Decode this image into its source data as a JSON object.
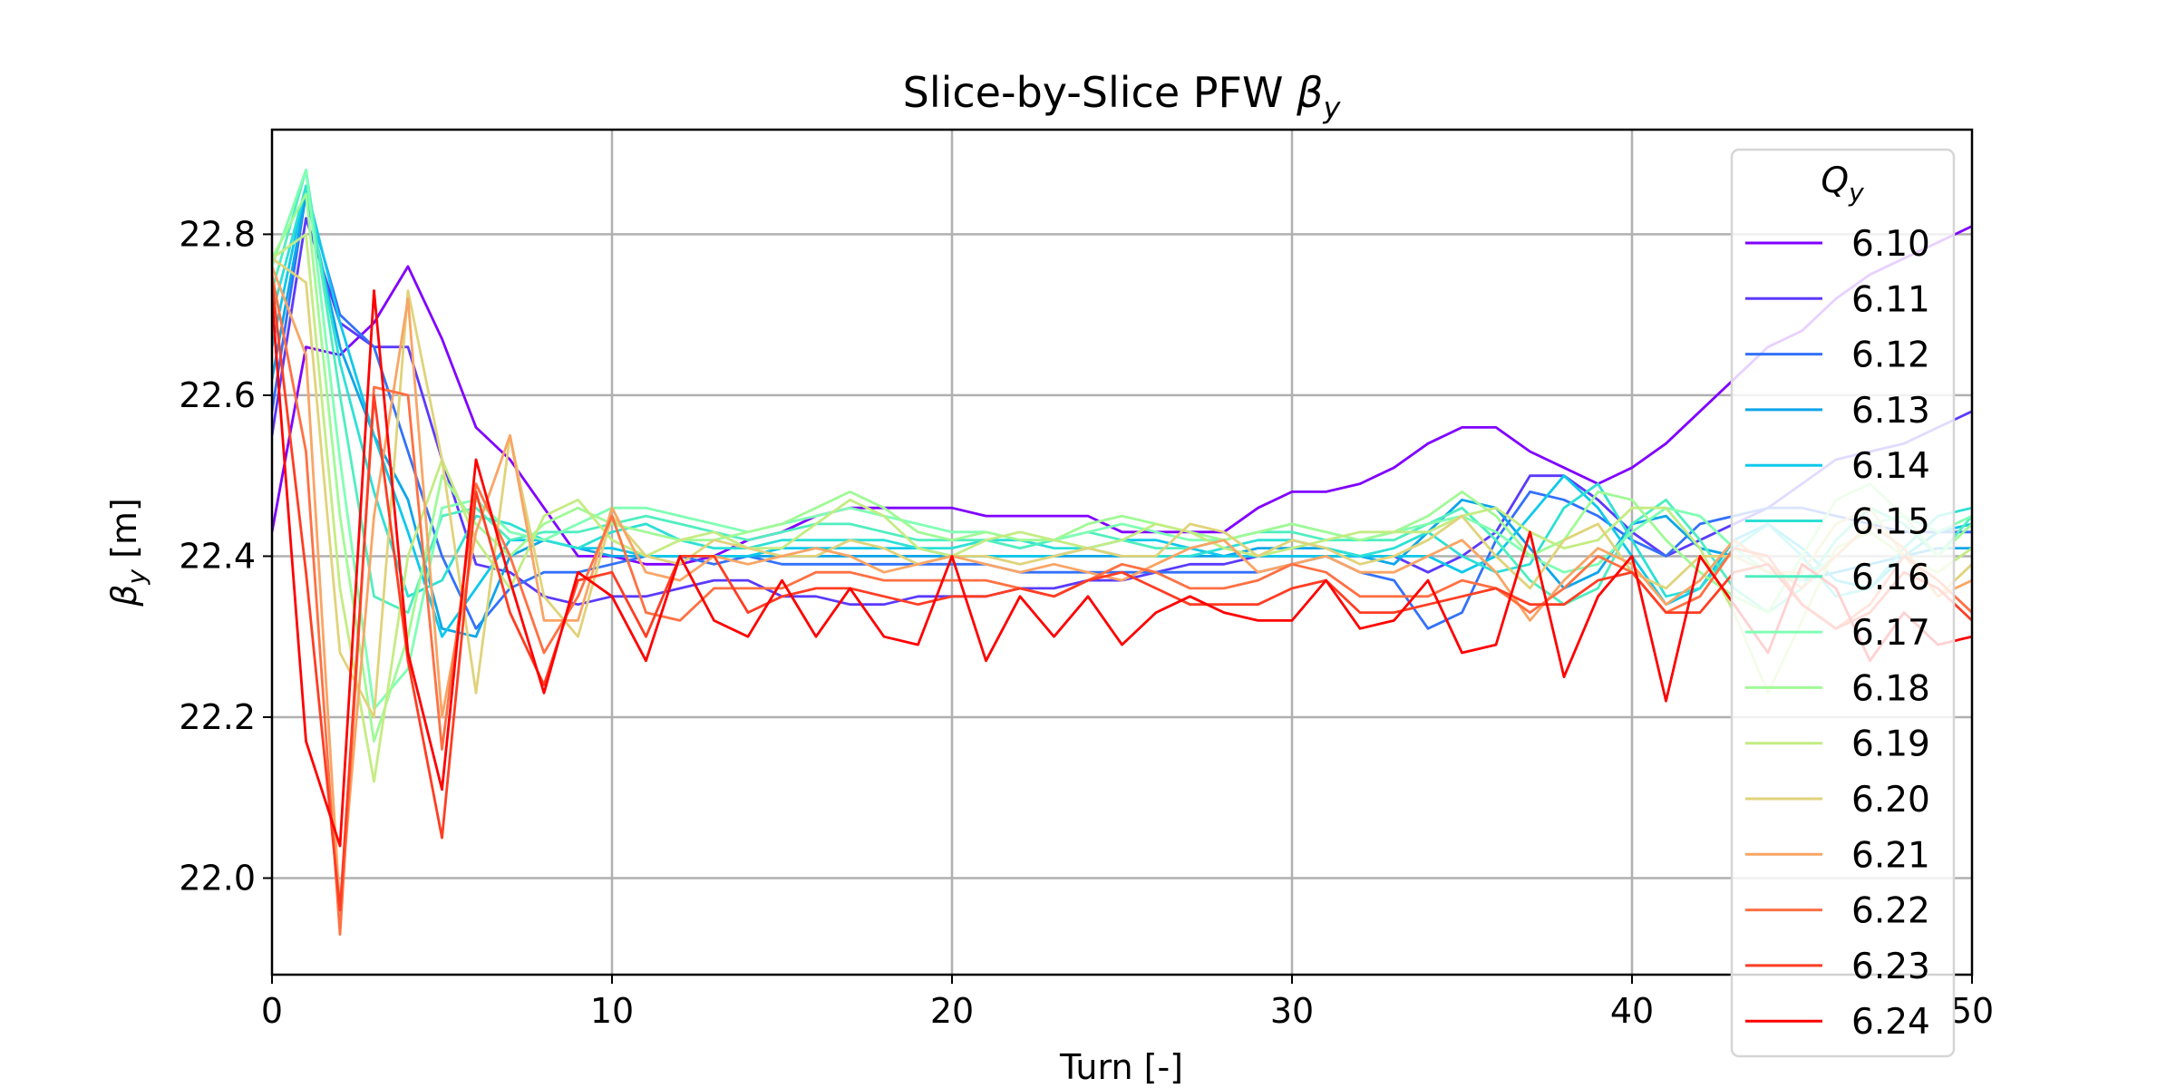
{
  "chart_data": {
    "type": "line",
    "title": "Slice-by-Slice PFW",
    "title_symbol": "β",
    "title_symbol_sub": "y",
    "xlabel": "Turn [-]",
    "ylabel": "β",
    "ylabel_sub": "y",
    "ylabel_unit": " [m]",
    "xlim": [
      0,
      50
    ],
    "ylim": [
      21.88,
      22.93
    ],
    "xticks": [
      "0",
      "10",
      "20",
      "30",
      "40",
      "50"
    ],
    "yticks": [
      "22.0",
      "22.2",
      "22.4",
      "22.6",
      "22.8"
    ],
    "grid": true,
    "legend_title": "Q",
    "legend_title_sub": "y",
    "legend_position": "right",
    "series": [
      {
        "name": "6.10",
        "color": "#8000ff",
        "values": [
          22.43,
          22.66,
          22.65,
          22.69,
          22.76,
          22.67,
          22.56,
          22.52,
          22.46,
          22.4,
          22.4,
          22.39,
          22.39,
          22.4,
          22.42,
          22.43,
          22.45,
          22.46,
          22.46,
          22.46,
          22.46,
          22.45,
          22.45,
          22.45,
          22.45,
          22.43,
          22.43,
          22.43,
          22.43,
          22.46,
          22.48,
          22.48,
          22.49,
          22.51,
          22.54,
          22.56,
          22.56,
          22.53,
          22.51,
          22.49,
          22.51,
          22.54,
          22.58,
          22.62,
          22.66,
          22.68,
          22.72,
          22.75,
          22.77,
          22.79,
          22.81
        ]
      },
      {
        "name": "6.11",
        "color": "#5b3afc",
        "values": [
          22.55,
          22.82,
          22.69,
          22.66,
          22.66,
          22.52,
          22.39,
          22.38,
          22.35,
          22.34,
          22.35,
          22.35,
          22.36,
          22.37,
          22.37,
          22.35,
          22.35,
          22.34,
          22.34,
          22.35,
          22.35,
          22.35,
          22.36,
          22.36,
          22.37,
          22.37,
          22.38,
          22.39,
          22.39,
          22.4,
          22.4,
          22.4,
          22.4,
          22.4,
          22.38,
          22.4,
          22.43,
          22.5,
          22.5,
          22.47,
          22.43,
          22.4,
          22.42,
          22.44,
          22.46,
          22.49,
          22.52,
          22.53,
          22.54,
          22.56,
          22.58
        ]
      },
      {
        "name": "6.12",
        "color": "#3371fa",
        "values": [
          22.58,
          22.85,
          22.7,
          22.66,
          22.53,
          22.4,
          22.31,
          22.36,
          22.38,
          22.38,
          22.39,
          22.4,
          22.4,
          22.39,
          22.4,
          22.39,
          22.39,
          22.39,
          22.39,
          22.39,
          22.39,
          22.39,
          22.38,
          22.38,
          22.38,
          22.38,
          22.38,
          22.38,
          22.38,
          22.38,
          22.39,
          22.4,
          22.38,
          22.37,
          22.31,
          22.33,
          22.42,
          22.48,
          22.47,
          22.45,
          22.42,
          22.4,
          22.44,
          22.45,
          22.46,
          22.46,
          22.45,
          22.44,
          22.43,
          22.43,
          22.43
        ]
      },
      {
        "name": "6.13",
        "color": "#0ea5e9",
        "values": [
          22.62,
          22.85,
          22.66,
          22.55,
          22.47,
          22.31,
          22.3,
          22.4,
          22.42,
          22.41,
          22.4,
          22.4,
          22.4,
          22.4,
          22.4,
          22.4,
          22.4,
          22.4,
          22.4,
          22.4,
          22.4,
          22.4,
          22.4,
          22.4,
          22.4,
          22.4,
          22.4,
          22.4,
          22.4,
          22.41,
          22.41,
          22.41,
          22.4,
          22.39,
          22.43,
          22.47,
          22.46,
          22.41,
          22.36,
          22.38,
          22.44,
          22.45,
          22.41,
          22.4,
          22.38,
          22.37,
          22.38,
          22.39,
          22.4,
          22.41,
          22.41
        ]
      },
      {
        "name": "6.14",
        "color": "#0fc8eb",
        "values": [
          22.66,
          22.86,
          22.69,
          22.55,
          22.43,
          22.3,
          22.36,
          22.42,
          22.42,
          22.41,
          22.41,
          22.4,
          22.4,
          22.4,
          22.4,
          22.41,
          22.41,
          22.41,
          22.41,
          22.41,
          22.4,
          22.4,
          22.4,
          22.4,
          22.41,
          22.42,
          22.42,
          22.41,
          22.4,
          22.4,
          22.4,
          22.4,
          22.4,
          22.4,
          22.4,
          22.38,
          22.4,
          22.45,
          22.5,
          22.46,
          22.4,
          22.34,
          22.36,
          22.42,
          22.44,
          22.41,
          22.37,
          22.36,
          22.4,
          22.43,
          22.44
        ]
      },
      {
        "name": "6.15",
        "color": "#2de0d5",
        "values": [
          22.7,
          22.86,
          22.64,
          22.48,
          22.35,
          22.37,
          22.45,
          22.44,
          22.42,
          22.41,
          22.43,
          22.44,
          22.42,
          22.41,
          22.41,
          22.42,
          22.42,
          22.42,
          22.42,
          22.41,
          22.41,
          22.42,
          22.42,
          22.41,
          22.41,
          22.4,
          22.4,
          22.4,
          22.41,
          22.42,
          22.42,
          22.41,
          22.4,
          22.41,
          22.43,
          22.4,
          22.38,
          22.39,
          22.46,
          22.49,
          22.42,
          22.35,
          22.36,
          22.41,
          22.44,
          22.4,
          22.35,
          22.36,
          22.41,
          22.45,
          22.46
        ]
      },
      {
        "name": "6.16",
        "color": "#50eebf",
        "values": [
          22.73,
          22.88,
          22.6,
          22.35,
          22.33,
          22.45,
          22.46,
          22.42,
          22.43,
          22.43,
          22.44,
          22.45,
          22.44,
          22.43,
          22.42,
          22.43,
          22.44,
          22.44,
          22.43,
          22.42,
          22.42,
          22.42,
          22.41,
          22.42,
          22.43,
          22.42,
          22.41,
          22.41,
          22.42,
          22.43,
          22.43,
          22.42,
          22.42,
          22.42,
          22.44,
          22.46,
          22.42,
          22.37,
          22.34,
          22.36,
          22.44,
          22.47,
          22.42,
          22.36,
          22.33,
          22.36,
          22.42,
          22.46,
          22.44,
          22.4,
          22.45
        ]
      },
      {
        "name": "6.17",
        "color": "#80ffb4",
        "values": [
          22.76,
          22.88,
          22.52,
          22.21,
          22.26,
          22.46,
          22.47,
          22.43,
          22.42,
          22.44,
          22.46,
          22.46,
          22.45,
          22.44,
          22.43,
          22.44,
          22.45,
          22.46,
          22.45,
          22.44,
          22.43,
          22.43,
          22.42,
          22.42,
          22.43,
          22.44,
          22.43,
          22.42,
          22.42,
          22.43,
          22.44,
          22.43,
          22.42,
          22.43,
          22.44,
          22.45,
          22.43,
          22.4,
          22.38,
          22.39,
          22.43,
          22.46,
          22.45,
          22.41,
          22.38,
          22.37,
          22.4,
          22.44,
          22.45,
          22.43,
          22.45
        ]
      },
      {
        "name": "6.18",
        "color": "#a0fa96",
        "values": [
          22.77,
          22.85,
          22.45,
          22.17,
          22.3,
          22.5,
          22.44,
          22.4,
          22.44,
          22.46,
          22.44,
          22.43,
          22.42,
          22.42,
          22.43,
          22.44,
          22.46,
          22.48,
          22.46,
          22.43,
          22.42,
          22.43,
          22.42,
          22.42,
          22.44,
          22.45,
          22.44,
          22.43,
          22.42,
          22.43,
          22.44,
          22.43,
          22.42,
          22.43,
          22.45,
          22.48,
          22.45,
          22.4,
          22.42,
          22.48,
          22.47,
          22.42,
          22.38,
          22.35,
          22.33,
          22.4,
          22.47,
          22.49,
          22.45,
          22.4,
          22.44
        ]
      },
      {
        "name": "6.19",
        "color": "#c4ec83",
        "values": [
          22.77,
          22.8,
          22.36,
          22.12,
          22.4,
          22.52,
          22.42,
          22.36,
          22.45,
          22.47,
          22.42,
          22.4,
          22.42,
          22.43,
          22.41,
          22.41,
          22.44,
          22.47,
          22.45,
          22.41,
          22.4,
          22.42,
          22.43,
          22.42,
          22.41,
          22.42,
          22.44,
          22.43,
          22.41,
          22.4,
          22.41,
          22.42,
          22.43,
          22.43,
          22.43,
          22.45,
          22.46,
          22.43,
          22.41,
          22.42,
          22.46,
          22.46,
          22.41,
          22.33,
          22.23,
          22.32,
          22.41,
          22.43,
          22.4,
          22.38,
          22.41
        ]
      },
      {
        "name": "6.20",
        "color": "#e0d37a",
        "values": [
          22.77,
          22.74,
          22.28,
          22.2,
          22.73,
          22.52,
          22.23,
          22.55,
          22.35,
          22.3,
          22.45,
          22.4,
          22.39,
          22.42,
          22.41,
          22.4,
          22.4,
          22.42,
          22.41,
          22.39,
          22.4,
          22.4,
          22.39,
          22.4,
          22.41,
          22.4,
          22.4,
          22.44,
          22.43,
          22.4,
          22.42,
          22.41,
          22.39,
          22.4,
          22.42,
          22.45,
          22.4,
          22.36,
          22.42,
          22.44,
          22.38,
          22.36,
          22.4,
          22.4,
          22.38,
          22.38,
          22.44,
          22.46,
          22.4,
          22.35,
          22.39
        ]
      },
      {
        "name": "6.21",
        "color": "#f9a565",
        "values": [
          22.76,
          22.65,
          21.96,
          22.45,
          22.72,
          22.2,
          22.43,
          22.55,
          22.32,
          22.32,
          22.46,
          22.38,
          22.37,
          22.4,
          22.39,
          22.4,
          22.41,
          22.4,
          22.38,
          22.39,
          22.4,
          22.39,
          22.38,
          22.39,
          22.38,
          22.37,
          22.39,
          22.41,
          22.42,
          22.38,
          22.39,
          22.4,
          22.38,
          22.38,
          22.4,
          22.42,
          22.38,
          22.32,
          22.37,
          22.41,
          22.39,
          22.34,
          22.37,
          22.42,
          22.39,
          22.36,
          22.4,
          22.44,
          22.41,
          22.35,
          22.37
        ]
      },
      {
        "name": "6.22",
        "color": "#ff7043",
        "values": [
          22.75,
          22.53,
          21.93,
          22.61,
          22.6,
          22.16,
          22.49,
          22.4,
          22.28,
          22.35,
          22.45,
          22.33,
          22.32,
          22.36,
          22.36,
          22.36,
          22.38,
          22.38,
          22.37,
          22.37,
          22.37,
          22.37,
          22.36,
          22.35,
          22.37,
          22.39,
          22.38,
          22.36,
          22.36,
          22.37,
          22.39,
          22.38,
          22.35,
          22.35,
          22.35,
          22.37,
          22.36,
          22.33,
          22.36,
          22.4,
          22.38,
          22.33,
          22.35,
          22.41,
          22.4,
          22.34,
          22.31,
          22.34,
          22.4,
          22.37,
          22.33
        ]
      },
      {
        "name": "6.23",
        "color": "#ff3d23",
        "values": [
          22.74,
          22.38,
          21.96,
          22.6,
          22.27,
          22.05,
          22.48,
          22.33,
          22.24,
          22.37,
          22.38,
          22.3,
          22.4,
          22.4,
          22.33,
          22.35,
          22.36,
          22.36,
          22.35,
          22.34,
          22.35,
          22.35,
          22.36,
          22.35,
          22.37,
          22.38,
          22.36,
          22.34,
          22.34,
          22.34,
          22.36,
          22.37,
          22.33,
          22.33,
          22.34,
          22.35,
          22.36,
          22.34,
          22.34,
          22.37,
          22.38,
          22.33,
          22.33,
          22.38,
          22.39,
          22.34,
          22.31,
          22.33,
          22.38,
          22.36,
          22.32
        ]
      },
      {
        "name": "6.24",
        "color": "#ff0000",
        "values": [
          22.72,
          22.17,
          22.04,
          22.73,
          22.28,
          22.11,
          22.52,
          22.37,
          22.23,
          22.38,
          22.35,
          22.27,
          22.4,
          22.32,
          22.3,
          22.37,
          22.3,
          22.36,
          22.3,
          22.29,
          22.4,
          22.27,
          22.35,
          22.3,
          22.35,
          22.29,
          22.33,
          22.35,
          22.33,
          22.32,
          22.32,
          22.37,
          22.31,
          22.32,
          22.37,
          22.28,
          22.29,
          22.43,
          22.25,
          22.35,
          22.4,
          22.22,
          22.4,
          22.34,
          22.28,
          22.39,
          22.36,
          22.27,
          22.33,
          22.29,
          22.3
        ]
      }
    ]
  }
}
